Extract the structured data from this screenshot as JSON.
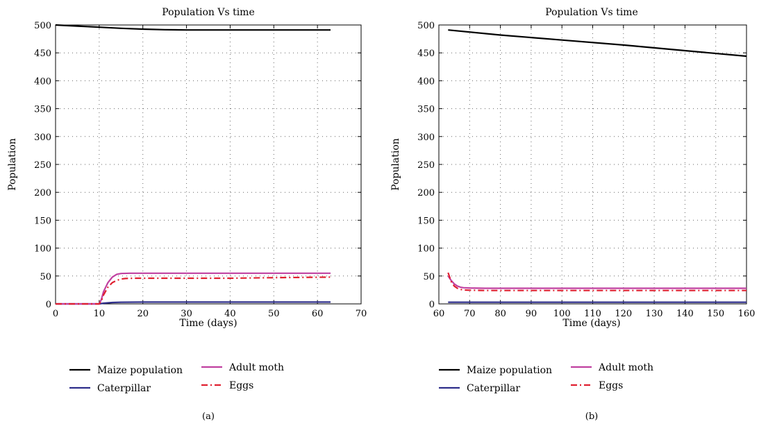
{
  "figures": [
    {
      "caption": "(a)"
    },
    {
      "caption": "(b)"
    }
  ],
  "chart_data": [
    {
      "type": "line",
      "title": "Population Vs time",
      "xlabel": "Time (days)",
      "ylabel": "Population",
      "xlim": [
        0,
        70
      ],
      "ylim": [
        0,
        500
      ],
      "xticks": [
        0,
        10,
        20,
        30,
        40,
        50,
        60,
        70
      ],
      "yticks": [
        0,
        50,
        100,
        150,
        200,
        250,
        300,
        350,
        400,
        450,
        500
      ],
      "grid": true,
      "legend_position": "bottom",
      "series": [
        {
          "name": "Maize population",
          "color": "#000000",
          "dash": "solid",
          "x": [
            0,
            5,
            10,
            15,
            20,
            25,
            30,
            40,
            50,
            63
          ],
          "y": [
            500,
            498,
            496,
            494,
            492.5,
            491.5,
            491,
            491,
            491,
            491
          ]
        },
        {
          "name": "Caterpillar",
          "color": "#2e2e8a",
          "dash": "solid",
          "x": [
            0,
            10,
            11,
            13,
            15,
            20,
            30,
            40,
            50,
            63
          ],
          "y": [
            0,
            0,
            1.2,
            2.5,
            3,
            3.2,
            3.2,
            3.2,
            3.2,
            3.2
          ]
        },
        {
          "name": "Adult moth",
          "color": "#c040a0",
          "dash": "solid",
          "x": [
            0,
            10,
            10.5,
            11,
            12,
            13,
            14,
            15,
            17,
            20,
            30,
            40,
            50,
            63
          ],
          "y": [
            0,
            0,
            8,
            22,
            38,
            48,
            53,
            54.5,
            55,
            55,
            55,
            55,
            55,
            55
          ]
        },
        {
          "name": "Eggs",
          "color": "#e02030",
          "dash": "dashdot",
          "x": [
            0,
            10,
            10.5,
            11,
            12,
            13,
            14,
            15,
            16,
            18,
            20,
            30,
            40,
            50,
            63
          ],
          "y": [
            0,
            0,
            5,
            16,
            30,
            38,
            42,
            44.5,
            45.5,
            46,
            46,
            46,
            46,
            47,
            48
          ]
        }
      ]
    },
    {
      "type": "line",
      "title": "Population Vs time",
      "xlabel": "Time (days)",
      "ylabel": "Population",
      "xlim": [
        60,
        160
      ],
      "ylim": [
        0,
        500
      ],
      "xticks": [
        60,
        70,
        80,
        90,
        100,
        110,
        120,
        130,
        140,
        150,
        160
      ],
      "yticks": [
        0,
        50,
        100,
        150,
        200,
        250,
        300,
        350,
        400,
        450,
        500
      ],
      "grid": true,
      "legend_position": "bottom",
      "series": [
        {
          "name": "Maize population",
          "color": "#000000",
          "dash": "solid",
          "x": [
            63,
            80,
            100,
            120,
            140,
            160
          ],
          "y": [
            491,
            482,
            473,
            464,
            454,
            444
          ]
        },
        {
          "name": "Caterpillar",
          "color": "#2e2e8a",
          "dash": "solid",
          "x": [
            63,
            80,
            100,
            120,
            140,
            160
          ],
          "y": [
            3,
            3,
            3,
            3,
            3,
            3
          ]
        },
        {
          "name": "Adult moth",
          "color": "#c040a0",
          "dash": "solid",
          "x": [
            63,
            64,
            65,
            66,
            67,
            68,
            70,
            75,
            90,
            120,
            160
          ],
          "y": [
            50,
            42,
            36,
            32,
            30,
            29,
            28.5,
            28,
            28,
            28,
            28
          ]
        },
        {
          "name": "Eggs",
          "color": "#e02030",
          "dash": "dashdot",
          "x": [
            63,
            64,
            65,
            66,
            67,
            68,
            70,
            75,
            90,
            120,
            160
          ],
          "y": [
            56,
            40,
            32,
            28,
            26,
            25,
            24.5,
            24,
            24,
            24,
            24
          ]
        }
      ]
    }
  ]
}
